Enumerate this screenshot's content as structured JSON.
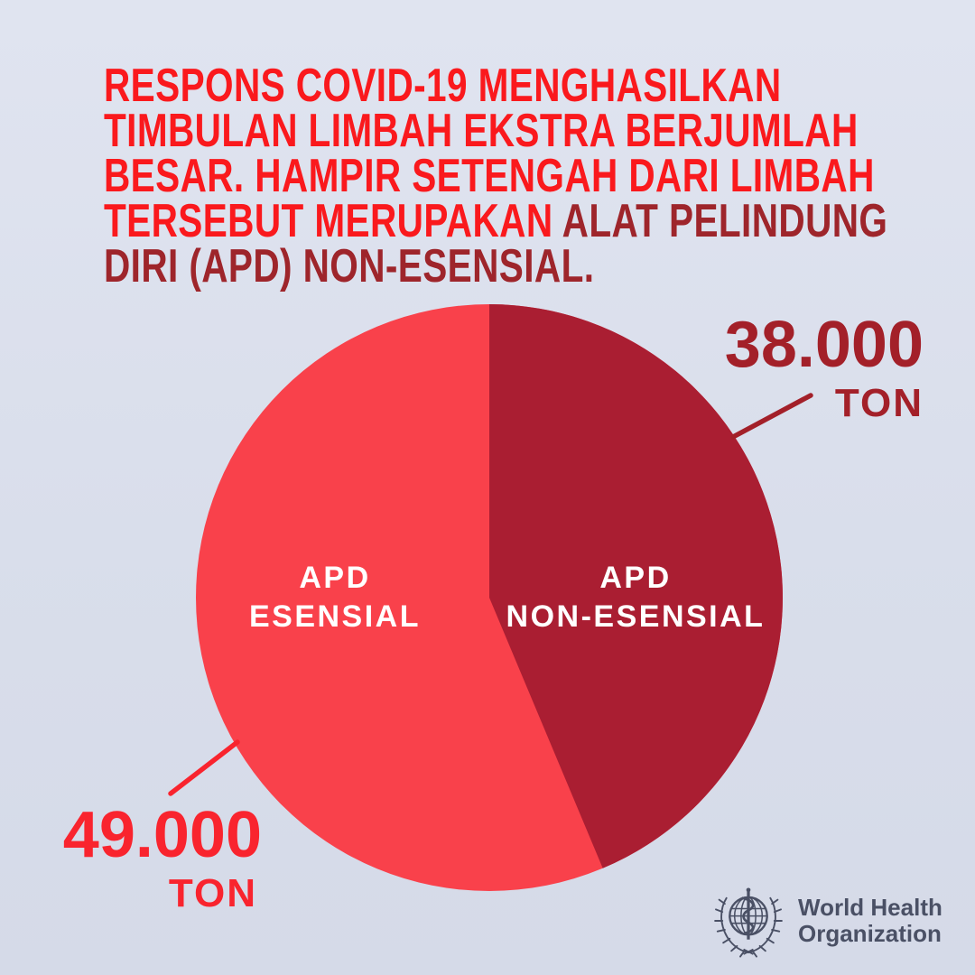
{
  "page": {
    "background_top": "#e0e4f0",
    "background_bottom": "#d5dae8"
  },
  "header": {
    "text_color": "#fa191d",
    "emphasis_color": "#9e252b",
    "lines": [
      {
        "normal": "RESPONS COVID-19 MENGHASILKAN",
        "emphasis": ""
      },
      {
        "normal": "TIMBULAN LIMBAH EKSTRA BERJUMLAH",
        "emphasis": ""
      },
      {
        "normal": "BESAR. HAMPIR SETENGAH DARI LIMBAH",
        "emphasis": ""
      },
      {
        "normal": "TERSEBUT MERUPAKAN ",
        "emphasis": "ALAT PELINDUNG"
      },
      {
        "normal": "",
        "emphasis": "DIRI (APD) NON-ESENSIAL."
      }
    ]
  },
  "chart_data": {
    "type": "pie",
    "categories": [
      "APD ESENSIAL",
      "APD NON-ESENSIAL"
    ],
    "values": [
      49000,
      38000
    ],
    "unit": "TON",
    "start_angle_deg": 0,
    "legend_position": "labels-inside-slices",
    "label_text_color": "#ffffff",
    "slices": [
      {
        "label_line1": "APD",
        "label_line2": "ESENSIAL",
        "value": 49000,
        "value_label": "49.000",
        "unit_label": "TON",
        "color": "#f9414b",
        "callout_color": "#f9242e"
      },
      {
        "label_line1": "APD",
        "label_line2": "NON-ESENSIAL",
        "value": 38000,
        "value_label": "38.000",
        "unit_label": "TON",
        "color": "#aa1e32",
        "callout_color": "#a32029"
      }
    ]
  },
  "footer": {
    "logo_icon": "who-emblem-icon",
    "logo_line1": "World Health",
    "logo_line2": "Organization",
    "logo_color": "#4a5065"
  }
}
